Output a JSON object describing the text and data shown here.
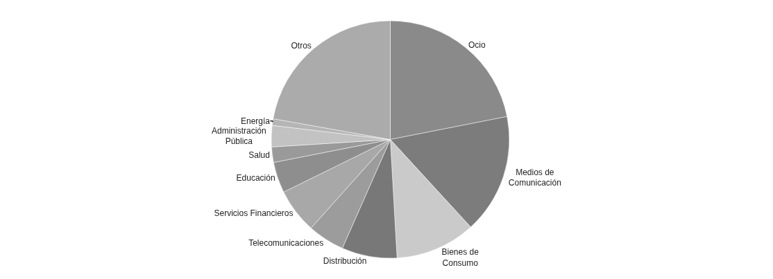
{
  "chart_data": {
    "type": "pie",
    "categories": [
      "Ocio",
      "Medios de\nComunicación",
      "Bienes de\nConsumo",
      "Distribución",
      "Telecomunicaciones",
      "Servicios Financieros",
      "Educación",
      "Salud",
      "Administración\nPública",
      "Energía",
      "Otros"
    ],
    "values": [
      21.9,
      16.3,
      10.9,
      7.5,
      5.0,
      6.1,
      4.2,
      2.1,
      2.9,
      0.9,
      22.2
    ],
    "colors": [
      "#8a8a8a",
      "#7c7c7c",
      "#cacaca",
      "#787878",
      "#9c9c9c",
      "#a8a8a8",
      "#8e8e8e",
      "#9a9a9a",
      "#c2c2c2",
      "#b5b5b5",
      "#ababab"
    ],
    "legend": false
  }
}
